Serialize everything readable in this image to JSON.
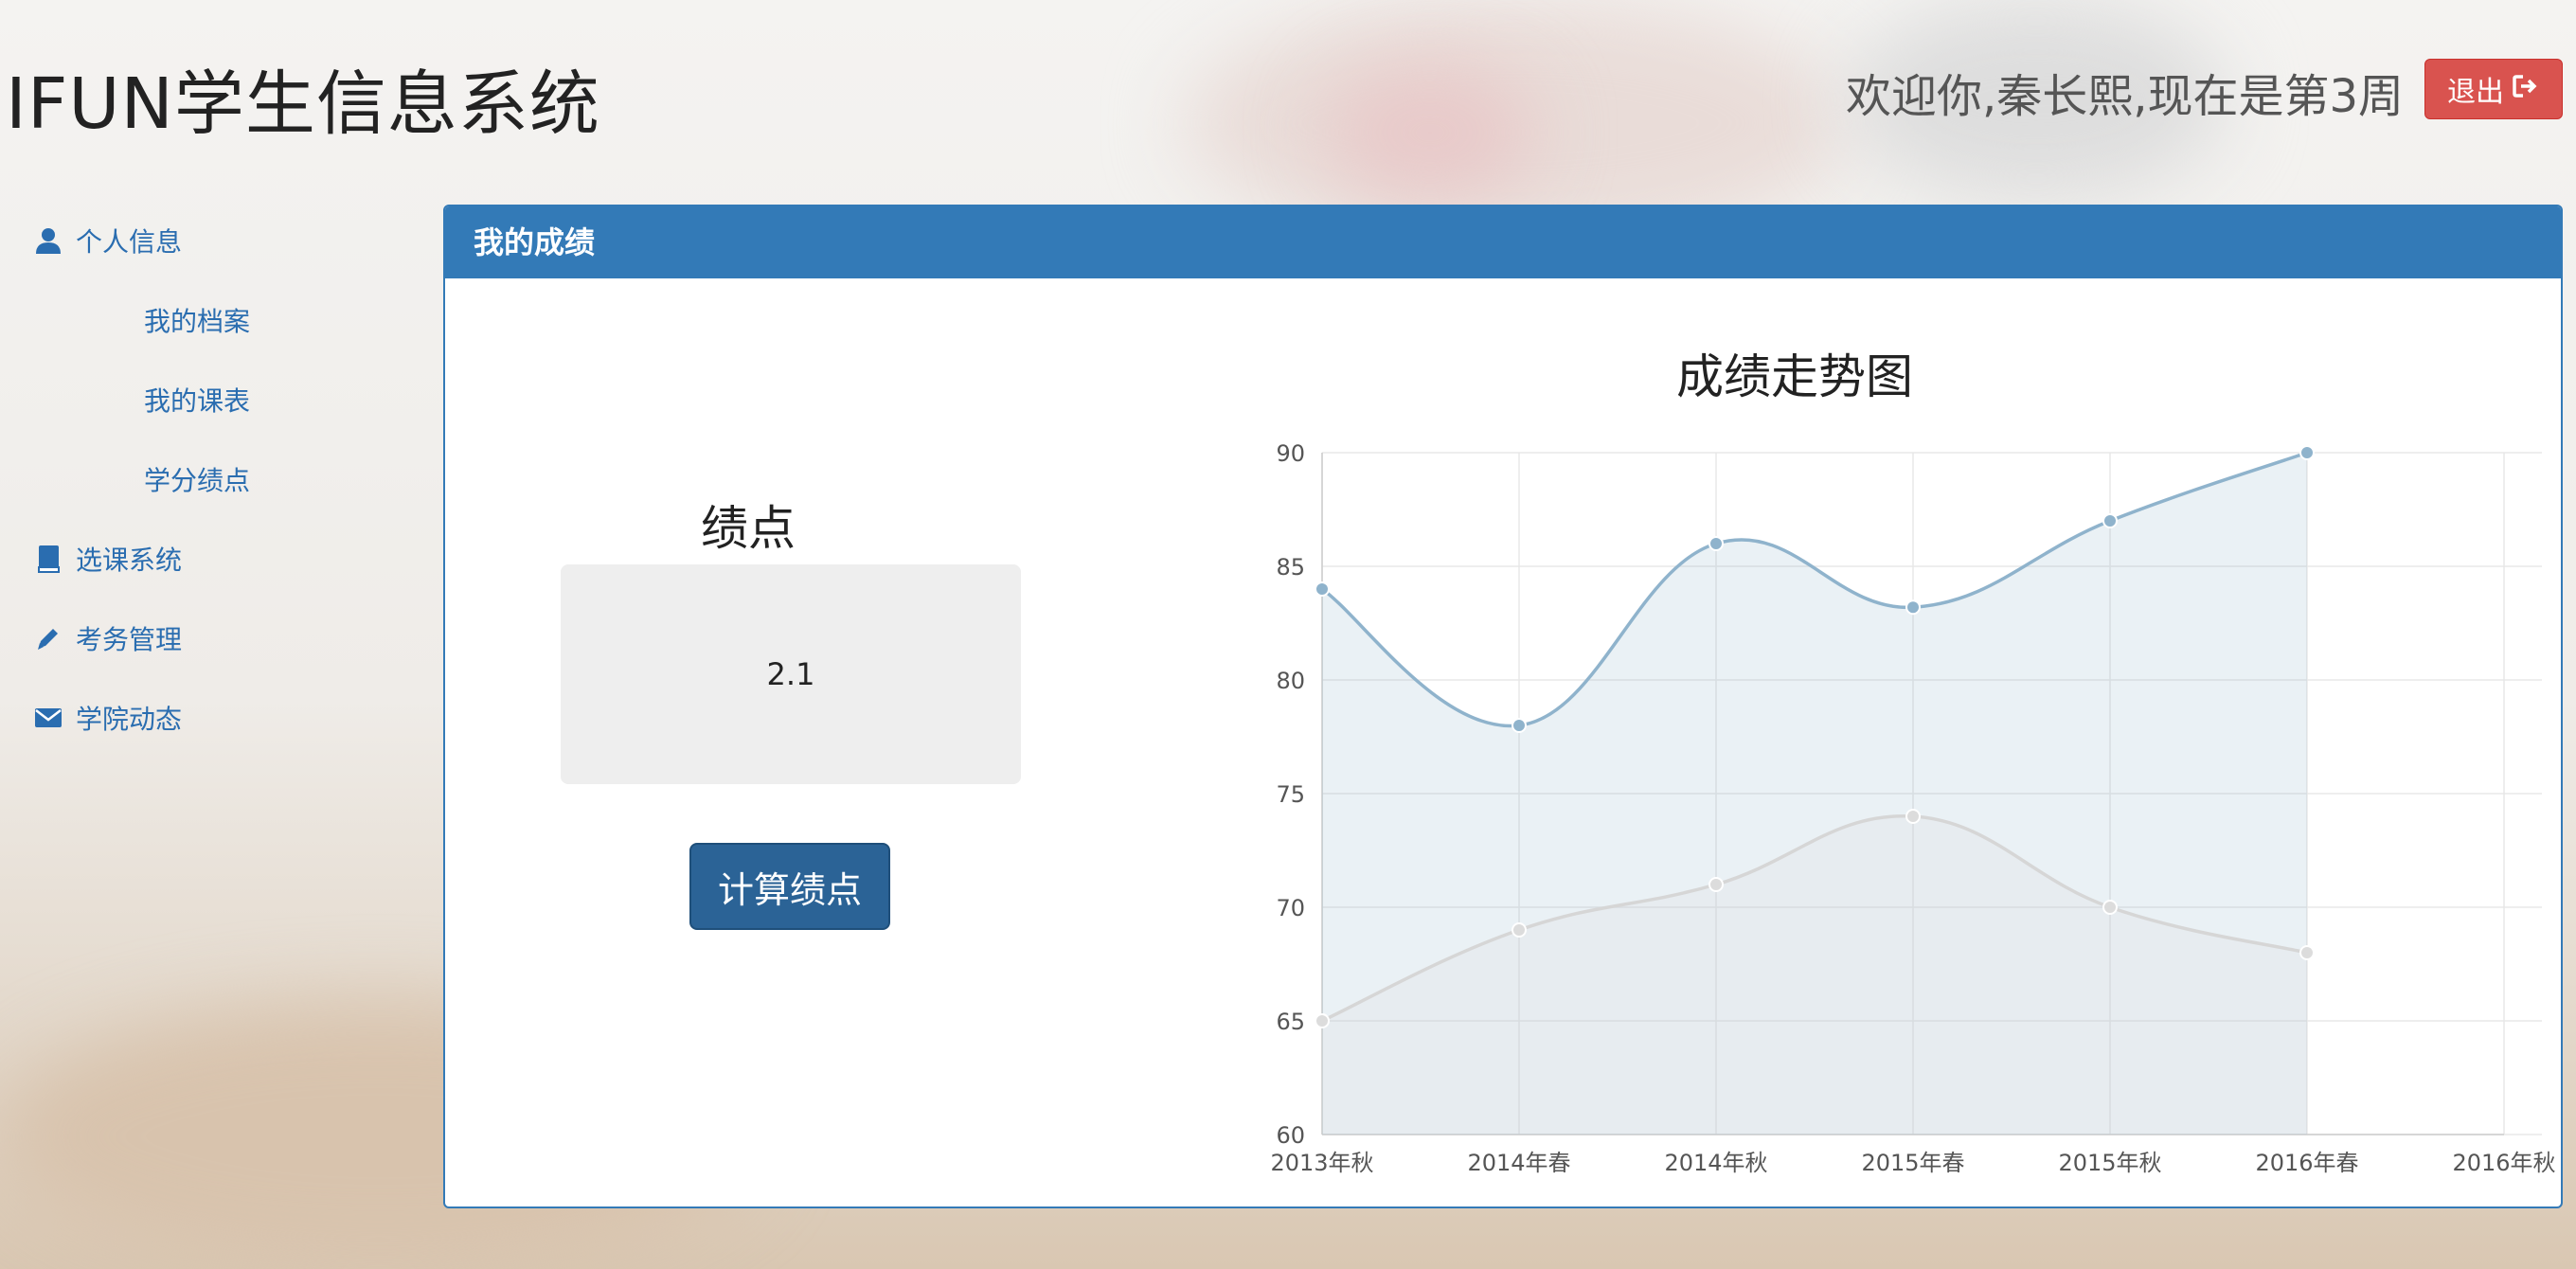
{
  "header": {
    "app_title": "IFUN学生信息系统",
    "welcome": "欢迎你,秦长熙,现在是第3周",
    "logout_label": "退出"
  },
  "sidebar": {
    "items": [
      {
        "label": "个人信息",
        "icon": "user-icon"
      },
      {
        "label": "我的档案"
      },
      {
        "label": "我的课表"
      },
      {
        "label": "学分绩点"
      },
      {
        "label": "选课系统",
        "icon": "book-icon"
      },
      {
        "label": "考务管理",
        "icon": "pencil-icon"
      },
      {
        "label": "学院动态",
        "icon": "envelope-icon"
      }
    ]
  },
  "panel": {
    "title": "我的成绩",
    "gpa_label": "绩点",
    "gpa_value": "2.1",
    "calc_button": "计算绩点"
  },
  "colors": {
    "primary": "#337ab7",
    "danger": "#d9534f",
    "button_dark": "#2b6396",
    "series1_line": "#8fb3cc",
    "series2_line": "#d6d6d6"
  },
  "chart_data": {
    "type": "area",
    "title": "成绩走势图",
    "categories": [
      "2013年秋",
      "2014年春",
      "2014年秋",
      "2015年春",
      "2015年秋",
      "2016年春",
      "2016年秋"
    ],
    "series": [
      {
        "values": [
          84,
          78,
          86,
          83.2,
          87,
          90,
          null
        ]
      },
      {
        "values": [
          65,
          69,
          71,
          74,
          70,
          68,
          null
        ]
      }
    ],
    "ylim": [
      60,
      90
    ],
    "yticks": [
      60,
      65,
      70,
      75,
      80,
      85,
      90
    ],
    "grid": true
  }
}
